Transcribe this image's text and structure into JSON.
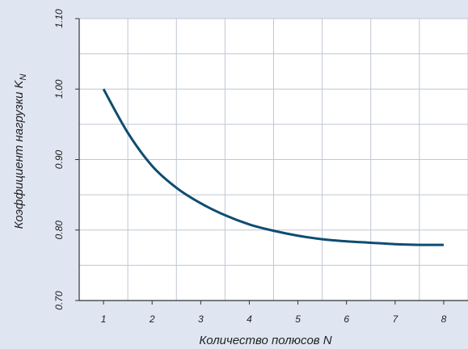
{
  "chart_data": {
    "type": "line",
    "xlabel": "Количество полюсов N",
    "ylabel": "Коэффициент нагрузки K",
    "ylabel_subscript": "N",
    "xlim": [
      0.5,
      8.5
    ],
    "ylim": [
      0.7,
      1.1
    ],
    "x_ticks": [
      1,
      2,
      3,
      4,
      5,
      6,
      7,
      8
    ],
    "x_tick_labels": [
      "1",
      "2",
      "3",
      "4",
      "5",
      "6",
      "7",
      "8"
    ],
    "y_ticks": [
      0.7,
      0.8,
      0.9,
      1.0,
      1.1
    ],
    "y_tick_labels": [
      "0.70",
      "0.80",
      "0.90",
      "1.00",
      "1.10"
    ],
    "grid": true,
    "series": [
      {
        "color": "#0f4c72",
        "x": [
          1,
          1.5,
          2,
          2.5,
          3,
          3.5,
          4,
          4.5,
          5,
          5.5,
          6,
          6.5,
          7,
          7.5,
          8
        ],
        "y": [
          1.0,
          0.938,
          0.891,
          0.86,
          0.838,
          0.821,
          0.808,
          0.799,
          0.792,
          0.787,
          0.784,
          0.782,
          0.78,
          0.779,
          0.779
        ]
      }
    ],
    "colors": {
      "background": "#dfe6f2",
      "plot_area": "#ffffff",
      "grid": "#bfc7d2",
      "axis": "#333333"
    }
  }
}
